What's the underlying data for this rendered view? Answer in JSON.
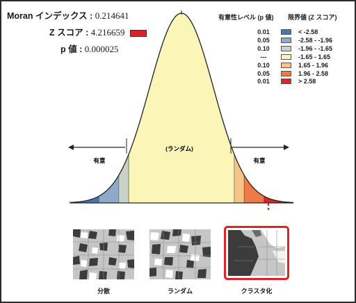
{
  "stats": {
    "moran_label": "Moran インデックス :",
    "moran_value": "0.214641",
    "z_label": "Z スコア :",
    "z_value": "4.216659",
    "p_label": "p 値 :",
    "p_value": "0.000025"
  },
  "legend": {
    "sig_title": "有意性レベル (p 値)",
    "crit_title": "限界値 (Z スコア)",
    "rows": [
      {
        "sig": "0.01",
        "range": "< -2.58",
        "color": "#4a74b3"
      },
      {
        "sig": "0.05",
        "range": "-2.58 - -1.96",
        "color": "#8fa9c9"
      },
      {
        "sig": "0.10",
        "range": "-1.96 - -1.65",
        "color": "#c8d2c6"
      },
      {
        "sig": "---",
        "range": "-1.65 - 1.65",
        "color": "#fbf5b8"
      },
      {
        "sig": "0.10",
        "range": "1.65 - 1.96",
        "color": "#f6c488"
      },
      {
        "sig": "0.05",
        "range": "1.96 - 2.58",
        "color": "#ee7a46"
      },
      {
        "sig": "0.01",
        "range": "> 2.58",
        "color": "#d9242a"
      }
    ]
  },
  "curve": {
    "random_label": "(ランダム)",
    "sig_left_label": "有意",
    "sig_right_label": "有意",
    "z_marker": 4.216659
  },
  "maps": {
    "dispersed_label": "分散",
    "random_label": "ランダム",
    "clustered_label": "クラスタ化",
    "highlight_color": "#d9242a"
  }
}
